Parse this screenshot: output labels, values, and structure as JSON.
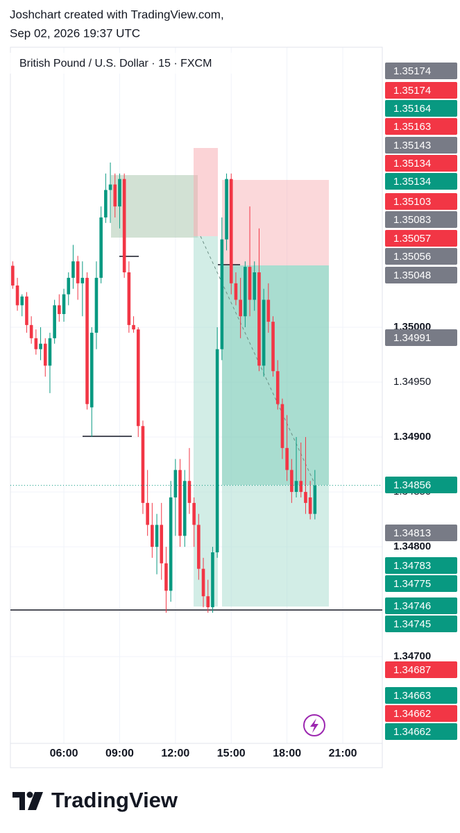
{
  "header": {
    "line1": "Joshchart created with TradingView.com,",
    "line2": "Sep 02, 2026 19:37 UTC"
  },
  "chart_data": {
    "type": "candlestick",
    "title": "British Pound / U.S. Dollar · 15 · FXCM",
    "x": [
      3.25,
      3.5,
      3.75,
      4,
      4.25,
      4.5,
      4.75,
      5,
      5.25,
      5.5,
      5.75,
      6,
      6.25,
      6.5,
      6.75,
      7,
      7.25,
      7.5,
      7.75,
      8,
      8.25,
      8.5,
      8.75,
      9,
      9.25,
      9.5,
      9.75,
      10,
      10.25,
      10.5,
      10.75,
      11,
      11.25,
      11.5,
      11.75,
      12,
      12.25,
      12.5,
      12.75,
      13,
      13.25,
      13.5,
      13.75,
      14,
      14.25,
      14.5,
      14.75,
      15,
      15.25,
      15.5,
      15.75,
      16,
      16.25,
      16.5,
      16.75,
      17,
      17.25,
      17.5,
      17.75,
      18,
      18.25,
      18.5,
      18.75,
      19,
      19.25,
      19.5
    ],
    "open": [
      1.35056,
      1.35038,
      1.3502,
      1.35028,
      1.35002,
      1.3499,
      1.3498,
      1.34985,
      1.34965,
      1.3499,
      1.3502,
      1.35012,
      1.3503,
      1.35045,
      1.3506,
      1.3504,
      1.35045,
      1.34927,
      1.34995,
      1.35045,
      1.351,
      1.35125,
      1.3513,
      1.3511,
      1.35135,
      1.3505,
      1.35002,
      1.34998,
      1.3491,
      1.3484,
      1.3482,
      1.348,
      1.3482,
      1.34785,
      1.3476,
      1.34845,
      1.3487,
      1.3481,
      1.3486,
      1.3484,
      1.3482,
      1.3478,
      1.34755,
      1.34745,
      1.34795,
      1.3498,
      1.3508,
      1.35135,
      1.3504,
      1.35025,
      1.3501,
      1.35055,
      1.35025,
      1.3505,
      1.34965,
      1.35025,
      1.35005,
      1.3496,
      1.3493,
      1.3489,
      1.3487,
      1.3485,
      1.3486,
      1.3485,
      1.34845,
      1.3483
    ],
    "high": [
      1.3506,
      1.35045,
      1.3503,
      1.35032,
      1.3501,
      1.34998,
      1.35,
      1.3499,
      1.34995,
      1.35025,
      1.3503,
      1.35035,
      1.3505,
      1.35075,
      1.35065,
      1.3506,
      1.3505,
      1.35,
      1.3506,
      1.3511,
      1.3514,
      1.3515,
      1.3514,
      1.3514,
      1.3514,
      1.3506,
      1.3501,
      1.35,
      1.34915,
      1.3487,
      1.3484,
      1.3483,
      1.3484,
      1.348,
      1.3486,
      1.3488,
      1.3488,
      1.3487,
      1.3489,
      1.34845,
      1.3483,
      1.3479,
      1.3477,
      1.348,
      1.35,
      1.351,
      1.3514,
      1.3514,
      1.3505,
      1.35045,
      1.3506,
      1.3511,
      1.3506,
      1.3509,
      1.35035,
      1.3504,
      1.3501,
      1.3497,
      1.34935,
      1.3492,
      1.3488,
      1.349,
      1.34895,
      1.349,
      1.3486,
      1.3487
    ],
    "low": [
      1.35035,
      1.35015,
      1.3501,
      1.34995,
      1.34985,
      1.34975,
      1.3497,
      1.34955,
      1.3494,
      1.34985,
      1.35005,
      1.35005,
      1.3502,
      1.35035,
      1.35025,
      1.3501,
      1.34925,
      1.349,
      1.3498,
      1.3504,
      1.35095,
      1.35095,
      1.351,
      1.3509,
      1.35045,
      1.34995,
      1.34995,
      1.349,
      1.3483,
      1.3481,
      1.3479,
      1.34775,
      1.3477,
      1.3474,
      1.3475,
      1.3481,
      1.348,
      1.348,
      1.3483,
      1.348,
      1.3477,
      1.34745,
      1.3474,
      1.3474,
      1.3479,
      1.3497,
      1.3507,
      1.3503,
      1.3502,
      1.3499,
      1.35,
      1.3501,
      1.35015,
      1.3496,
      1.34955,
      1.34995,
      1.34955,
      1.34925,
      1.3488,
      1.3486,
      1.3484,
      1.34845,
      1.34845,
      1.3483,
      1.34825,
      1.34825
    ],
    "close": [
      1.35038,
      1.3502,
      1.35028,
      1.35002,
      1.3499,
      1.3498,
      1.34985,
      1.34965,
      1.3499,
      1.3502,
      1.35012,
      1.3503,
      1.35045,
      1.3506,
      1.3504,
      1.35045,
      1.3493,
      1.34995,
      1.35045,
      1.351,
      1.35125,
      1.3513,
      1.3511,
      1.35135,
      1.3505,
      1.35002,
      1.34998,
      1.3491,
      1.3484,
      1.3482,
      1.348,
      1.3482,
      1.34785,
      1.3476,
      1.34845,
      1.3487,
      1.3481,
      1.3486,
      1.3484,
      1.3482,
      1.3478,
      1.34755,
      1.34745,
      1.34795,
      1.3498,
      1.3508,
      1.35135,
      1.3504,
      1.35025,
      1.3501,
      1.35055,
      1.35025,
      1.3505,
      1.34965,
      1.35025,
      1.35005,
      1.3496,
      1.3493,
      1.3489,
      1.3487,
      1.3485,
      1.3486,
      1.3485,
      1.3484,
      1.3483,
      1.34856
    ],
    "up_color": "#089981",
    "down_color": "#f23645",
    "xlim": [
      3.125,
      23.125
    ],
    "xticks": [
      {
        "value": 6,
        "label": "06:00"
      },
      {
        "value": 9,
        "label": "09:00"
      },
      {
        "value": 12,
        "label": "12:00"
      },
      {
        "value": 15,
        "label": "15:00"
      },
      {
        "value": 18,
        "label": "18:00"
      },
      {
        "value": 21,
        "label": "21:00"
      }
    ],
    "ylim": [
      1.34621,
      1.35255
    ],
    "yticks": [
      {
        "value": 1.347,
        "label": "1.34700"
      },
      {
        "value": 1.348,
        "label": "1.34800"
      },
      {
        "value": 1.3485,
        "label": "1.34850"
      },
      {
        "value": 1.349,
        "label": "1.34900"
      },
      {
        "value": 1.3495,
        "label": "1.34950"
      },
      {
        "value": 1.35,
        "label": "1.35000"
      }
    ],
    "grid": true,
    "price_labels": [
      {
        "value": 1.35174,
        "color": "#787b86"
      },
      {
        "value": 1.35174,
        "color": "#f23645"
      },
      {
        "value": 1.35164,
        "color": "#089981"
      },
      {
        "value": 1.35163,
        "color": "#f23645"
      },
      {
        "value": 1.35143,
        "color": "#787b86"
      },
      {
        "value": 1.35134,
        "color": "#f23645"
      },
      {
        "value": 1.35134,
        "color": "#089981"
      },
      {
        "value": 1.35103,
        "color": "#f23645"
      },
      {
        "value": 1.35083,
        "color": "#787b86"
      },
      {
        "value": 1.35057,
        "color": "#f23645"
      },
      {
        "value": 1.35056,
        "color": "#787b86"
      },
      {
        "value": 1.35048,
        "color": "#787b86"
      },
      {
        "value": 1.34991,
        "color": "#787b86"
      },
      {
        "value": 1.34856,
        "color": "#089981"
      },
      {
        "value": 1.34813,
        "color": "#787b86"
      },
      {
        "value": 1.34783,
        "color": "#089981"
      },
      {
        "value": 1.34775,
        "color": "#089981"
      },
      {
        "value": 1.34746,
        "color": "#089981"
      },
      {
        "value": 1.34745,
        "color": "#089981"
      },
      {
        "value": 1.34687,
        "color": "#f23645"
      },
      {
        "value": 1.34663,
        "color": "#089981"
      },
      {
        "value": 1.34662,
        "color": "#f23645"
      },
      {
        "value": 1.34662,
        "color": "#089981"
      }
    ]
  },
  "footer": {
    "logo": "TradingView"
  }
}
